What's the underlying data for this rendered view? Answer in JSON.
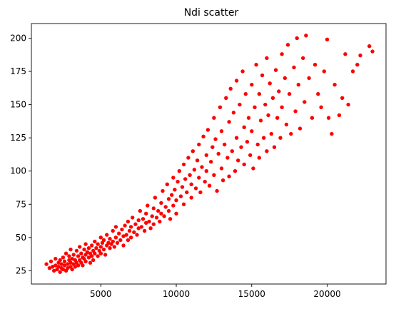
{
  "chart_data": {
    "type": "scatter",
    "title": "Ndi scatter",
    "xlabel": "",
    "ylabel": "",
    "xlim": [
      400,
      23900
    ],
    "ylim": [
      15,
      211
    ],
    "xticks": [
      5000,
      10000,
      15000,
      20000
    ],
    "xtick_labels": [
      "5000",
      "10000",
      "15000",
      "20000"
    ],
    "yticks": [
      25,
      50,
      75,
      100,
      125,
      150,
      175,
      200
    ],
    "ytick_labels": [
      "25",
      "50",
      "75",
      "100",
      "125",
      "150",
      "175",
      "200"
    ],
    "grid": false,
    "legend": "none",
    "marker_color": "#ff0000",
    "points": [
      [
        1400,
        30
      ],
      [
        1600,
        27
      ],
      [
        1700,
        32
      ],
      [
        1800,
        28
      ],
      [
        1900,
        25
      ],
      [
        2000,
        29
      ],
      [
        2000,
        34
      ],
      [
        2100,
        26
      ],
      [
        2200,
        31
      ],
      [
        2200,
        28
      ],
      [
        2300,
        24
      ],
      [
        2300,
        33
      ],
      [
        2400,
        27
      ],
      [
        2400,
        30
      ],
      [
        2500,
        35
      ],
      [
        2500,
        26
      ],
      [
        2600,
        29
      ],
      [
        2600,
        32
      ],
      [
        2700,
        25
      ],
      [
        2700,
        38
      ],
      [
        2800,
        30
      ],
      [
        2800,
        27
      ],
      [
        2900,
        33
      ],
      [
        2900,
        36
      ],
      [
        3000,
        28
      ],
      [
        3000,
        31
      ],
      [
        3000,
        41
      ],
      [
        3100,
        26
      ],
      [
        3100,
        34
      ],
      [
        3200,
        30
      ],
      [
        3200,
        37
      ],
      [
        3300,
        28
      ],
      [
        3300,
        33
      ],
      [
        3400,
        40
      ],
      [
        3400,
        31
      ],
      [
        3500,
        29
      ],
      [
        3500,
        36
      ],
      [
        3600,
        33
      ],
      [
        3600,
        43
      ],
      [
        3700,
        31
      ],
      [
        3700,
        38
      ],
      [
        3800,
        35
      ],
      [
        3800,
        29
      ],
      [
        3900,
        41
      ],
      [
        3900,
        34
      ],
      [
        4000,
        37
      ],
      [
        4000,
        32
      ],
      [
        4000,
        45
      ],
      [
        4100,
        39
      ],
      [
        4200,
        35
      ],
      [
        4200,
        42
      ],
      [
        4300,
        31
      ],
      [
        4300,
        38
      ],
      [
        4400,
        44
      ],
      [
        4400,
        36
      ],
      [
        4500,
        40
      ],
      [
        4500,
        33
      ],
      [
        4600,
        47
      ],
      [
        4600,
        38
      ],
      [
        4700,
        42
      ],
      [
        4800,
        36
      ],
      [
        4800,
        45
      ],
      [
        4900,
        40
      ],
      [
        5000,
        43
      ],
      [
        5000,
        38
      ],
      [
        5000,
        50
      ],
      [
        5100,
        46
      ],
      [
        5200,
        41
      ],
      [
        5200,
        48
      ],
      [
        5300,
        37
      ],
      [
        5400,
        44
      ],
      [
        5400,
        52
      ],
      [
        5500,
        46
      ],
      [
        5600,
        42
      ],
      [
        5600,
        49
      ],
      [
        5700,
        45
      ],
      [
        5800,
        55
      ],
      [
        5800,
        47
      ],
      [
        5900,
        43
      ],
      [
        6000,
        50
      ],
      [
        6000,
        58
      ],
      [
        6100,
        46
      ],
      [
        6200,
        53
      ],
      [
        6300,
        48
      ],
      [
        6400,
        56
      ],
      [
        6500,
        51
      ],
      [
        6500,
        44
      ],
      [
        6600,
        59
      ],
      [
        6700,
        52
      ],
      [
        6800,
        48
      ],
      [
        6800,
        62
      ],
      [
        6900,
        55
      ],
      [
        7000,
        50
      ],
      [
        7000,
        58
      ],
      [
        7100,
        65
      ],
      [
        7200,
        54
      ],
      [
        7300,
        60
      ],
      [
        7400,
        52
      ],
      [
        7500,
        63
      ],
      [
        7500,
        57
      ],
      [
        7600,
        70
      ],
      [
        7700,
        58
      ],
      [
        7800,
        64
      ],
      [
        7900,
        55
      ],
      [
        8000,
        61
      ],
      [
        8000,
        68
      ],
      [
        8100,
        74
      ],
      [
        8200,
        62
      ],
      [
        8300,
        57
      ],
      [
        8400,
        66
      ],
      [
        8500,
        72
      ],
      [
        8500,
        60
      ],
      [
        8600,
        80
      ],
      [
        8700,
        65
      ],
      [
        8800,
        70
      ],
      [
        8900,
        62
      ],
      [
        9000,
        76
      ],
      [
        9000,
        68
      ],
      [
        9100,
        85
      ],
      [
        9200,
        66
      ],
      [
        9300,
        73
      ],
      [
        9400,
        90
      ],
      [
        9500,
        70
      ],
      [
        9500,
        79
      ],
      [
        9600,
        64
      ],
      [
        9700,
        82
      ],
      [
        9800,
        95
      ],
      [
        9800,
        74
      ],
      [
        9900,
        86
      ],
      [
        10000,
        78
      ],
      [
        10000,
        68
      ],
      [
        10100,
        92
      ],
      [
        10200,
        100
      ],
      [
        10300,
        81
      ],
      [
        10400,
        88
      ],
      [
        10500,
        75
      ],
      [
        10500,
        105
      ],
      [
        10600,
        94
      ],
      [
        10700,
        84
      ],
      [
        10800,
        110
      ],
      [
        10900,
        97
      ],
      [
        11000,
        80
      ],
      [
        11000,
        90
      ],
      [
        11100,
        115
      ],
      [
        11200,
        101
      ],
      [
        11300,
        87
      ],
      [
        11400,
        108
      ],
      [
        11500,
        95
      ],
      [
        11500,
        120
      ],
      [
        11600,
        84
      ],
      [
        11700,
        103
      ],
      [
        11800,
        126
      ],
      [
        11900,
        92
      ],
      [
        12000,
        112
      ],
      [
        12000,
        100
      ],
      [
        12100,
        131
      ],
      [
        12200,
        89
      ],
      [
        12300,
        107
      ],
      [
        12400,
        118
      ],
      [
        12500,
        97
      ],
      [
        12500,
        140
      ],
      [
        12600,
        124
      ],
      [
        12700,
        85
      ],
      [
        12800,
        113
      ],
      [
        12900,
        148
      ],
      [
        13000,
        102
      ],
      [
        13000,
        130
      ],
      [
        13100,
        93
      ],
      [
        13200,
        120
      ],
      [
        13300,
        155
      ],
      [
        13400,
        110
      ],
      [
        13500,
        137
      ],
      [
        13500,
        96
      ],
      [
        13600,
        162
      ],
      [
        13700,
        115
      ],
      [
        13800,
        144
      ],
      [
        13900,
        100
      ],
      [
        14000,
        125
      ],
      [
        14000,
        168
      ],
      [
        14100,
        108
      ],
      [
        14200,
        150
      ],
      [
        14300,
        118
      ],
      [
        14400,
        175
      ],
      [
        14500,
        133
      ],
      [
        14500,
        105
      ],
      [
        14600,
        158
      ],
      [
        14700,
        122
      ],
      [
        14800,
        140
      ],
      [
        14900,
        112
      ],
      [
        15000,
        165
      ],
      [
        15000,
        130
      ],
      [
        15100,
        102
      ],
      [
        15200,
        148
      ],
      [
        15300,
        180
      ],
      [
        15400,
        120
      ],
      [
        15500,
        158
      ],
      [
        15500,
        110
      ],
      [
        15600,
        138
      ],
      [
        15700,
        172
      ],
      [
        15800,
        125
      ],
      [
        15900,
        150
      ],
      [
        16000,
        185
      ],
      [
        16000,
        115
      ],
      [
        16100,
        142
      ],
      [
        16200,
        166
      ],
      [
        16300,
        128
      ],
      [
        16400,
        155
      ],
      [
        16500,
        118
      ],
      [
        16600,
        176
      ],
      [
        16700,
        140
      ],
      [
        16800,
        160
      ],
      [
        16900,
        125
      ],
      [
        17000,
        188
      ],
      [
        17000,
        148
      ],
      [
        17200,
        170
      ],
      [
        17300,
        135
      ],
      [
        17400,
        195
      ],
      [
        17500,
        158
      ],
      [
        17600,
        128
      ],
      [
        17800,
        178
      ],
      [
        17900,
        145
      ],
      [
        18000,
        200
      ],
      [
        18100,
        165
      ],
      [
        18200,
        132
      ],
      [
        18400,
        185
      ],
      [
        18500,
        152
      ],
      [
        18600,
        202
      ],
      [
        18800,
        170
      ],
      [
        19000,
        140
      ],
      [
        19200,
        180
      ],
      [
        19400,
        158
      ],
      [
        19600,
        148
      ],
      [
        19800,
        175
      ],
      [
        20000,
        199
      ],
      [
        20100,
        140
      ],
      [
        20300,
        128
      ],
      [
        20500,
        165
      ],
      [
        20800,
        142
      ],
      [
        21000,
        155
      ],
      [
        21200,
        188
      ],
      [
        21400,
        150
      ],
      [
        21700,
        175
      ],
      [
        22000,
        180
      ],
      [
        22200,
        187
      ],
      [
        22800,
        194
      ],
      [
        23000,
        190
      ]
    ]
  }
}
